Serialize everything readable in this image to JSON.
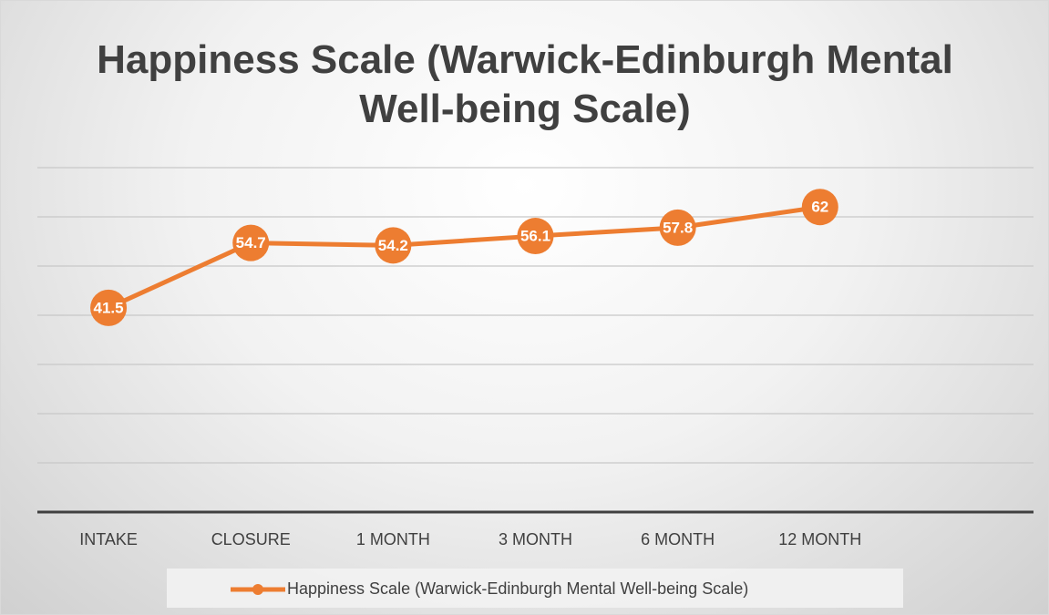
{
  "chart_data": {
    "type": "line",
    "title": "Happiness Scale (Warwick-Edinburgh Mental Well-being Scale)",
    "categories": [
      "INTAKE",
      "CLOSURE",
      "1 MONTH",
      "3 MONTH",
      "6 MONTH",
      "12 MONTH",
      null
    ],
    "series": [
      {
        "name": "Happiness Scale (Warwick-Edinburgh Mental Well-being Scale)",
        "color": "#ed7d31",
        "values": [
          41.5,
          54.7,
          54.2,
          56.1,
          57.8,
          62,
          null
        ]
      }
    ],
    "ylim": [
      0,
      70
    ],
    "yticks": [
      0,
      10,
      20,
      30,
      40,
      50,
      60,
      70
    ],
    "grid": true,
    "legend": "bottom"
  }
}
